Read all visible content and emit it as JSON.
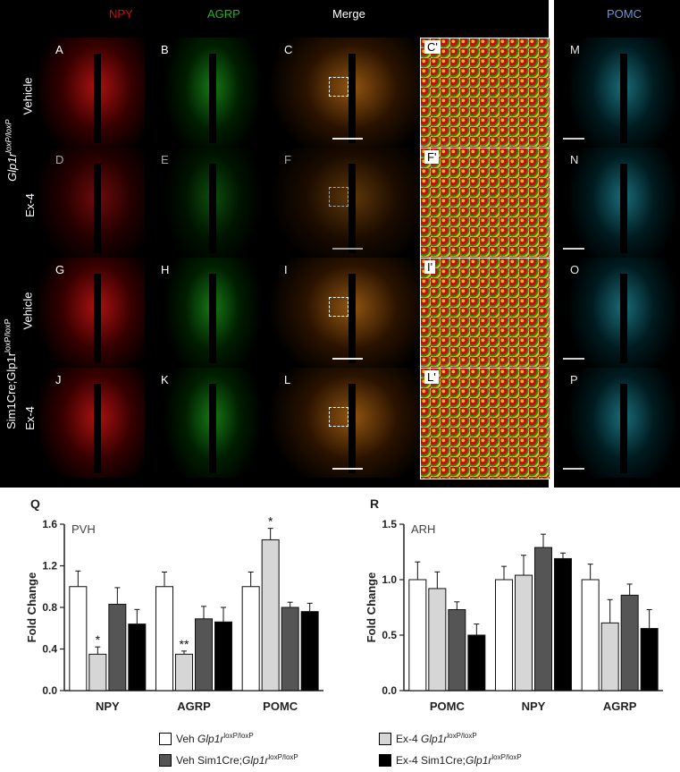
{
  "column_headers": {
    "npy": "NPY",
    "agrp": "AGRP",
    "merge": "Merge",
    "pomc": "POMC"
  },
  "row_labels": {
    "genotype_top": "Glp1r",
    "genotype_top_sup": "loxP/loxP",
    "genotype_bottom": "Sim1Cre;Glp1r",
    "genotype_bottom_sup": "loxP/loxP",
    "vehicle": "Vehicle",
    "ex4": "Ex-4"
  },
  "panel_letters": [
    "A",
    "B",
    "C",
    "C'",
    "M",
    "D",
    "E",
    "F",
    "F'",
    "N",
    "G",
    "H",
    "I",
    "I'",
    "O",
    "J",
    "K",
    "L",
    "L'",
    "P"
  ],
  "colors": {
    "npy_header": "#e00000",
    "agrp_header": "#1cb81c",
    "merge_header": "#ffffff",
    "pomc_header": "#6a96d6",
    "veh_flox": "#ffffff",
    "ex4_flox": "#d6d6d6",
    "veh_cre": "#555555",
    "ex4_cre": "#000000"
  },
  "chart_data": [
    {
      "type": "bar",
      "panel": "Q",
      "annotation": "PVH",
      "ylabel": "Fold Change",
      "categories": [
        "NPY",
        "AGRP",
        "POMC"
      ],
      "ylim": [
        0,
        1.6
      ],
      "yticks": [
        "0.0",
        "0.4",
        "0.8",
        "1.2",
        "1.6"
      ],
      "series": [
        {
          "name": "Veh Glp1r loxP/loxP",
          "values": [
            1.0,
            1.0,
            1.0
          ],
          "errors": [
            0.15,
            0.14,
            0.14
          ]
        },
        {
          "name": "Ex-4 Glp1r loxP/loxP",
          "values": [
            0.35,
            0.35,
            1.45
          ],
          "errors": [
            0.07,
            0.03,
            0.11
          ]
        },
        {
          "name": "Veh Sim1Cre;Glp1r loxP/loxP",
          "values": [
            0.83,
            0.69,
            0.8
          ],
          "errors": [
            0.16,
            0.12,
            0.05
          ]
        },
        {
          "name": "Ex-4 Sim1Cre;Glp1r loxP/loxP",
          "values": [
            0.64,
            0.66,
            0.76
          ],
          "errors": [
            0.14,
            0.14,
            0.08
          ]
        }
      ],
      "significance": [
        {
          "category": "NPY",
          "series": 1,
          "text": "*"
        },
        {
          "category": "AGRP",
          "series": 1,
          "text": "**"
        },
        {
          "category": "POMC",
          "series": 1,
          "text": "*"
        }
      ]
    },
    {
      "type": "bar",
      "panel": "R",
      "annotation": "ARH",
      "ylabel": "Fold Change",
      "categories": [
        "POMC",
        "NPY",
        "AGRP"
      ],
      "ylim": [
        0,
        1.5
      ],
      "yticks": [
        "0.0",
        "0.5",
        "1.0",
        "1.5"
      ],
      "series": [
        {
          "name": "Veh Glp1r loxP/loxP",
          "values": [
            1.0,
            1.0,
            1.0
          ],
          "errors": [
            0.16,
            0.12,
            0.14
          ]
        },
        {
          "name": "Ex-4 Glp1r loxP/loxP",
          "values": [
            0.92,
            1.04,
            0.61
          ],
          "errors": [
            0.15,
            0.18,
            0.21
          ]
        },
        {
          "name": "Veh Sim1Cre;Glp1r loxP/loxP",
          "values": [
            0.73,
            1.29,
            0.86
          ],
          "errors": [
            0.07,
            0.12,
            0.1
          ]
        },
        {
          "name": "Ex-4 Sim1Cre;Glp1r loxP/loxP",
          "values": [
            0.5,
            1.19,
            0.56
          ],
          "errors": [
            0.1,
            0.05,
            0.17
          ]
        }
      ]
    }
  ],
  "legend": [
    {
      "prefix": "Veh ",
      "gene": "Glp1r",
      "sup": "loxP/loxP",
      "color_key": "veh_flox"
    },
    {
      "prefix": "Ex-4 ",
      "gene": "Glp1r",
      "sup": "loxP/loxP",
      "color_key": "ex4_flox"
    },
    {
      "prefix": "Veh Sim1Cre;",
      "gene": "Glp1r",
      "sup": "loxP/loxP",
      "color_key": "veh_cre"
    },
    {
      "prefix": "Ex-4 Sim1Cre;",
      "gene": "Glp1r",
      "sup": "loxP/loxP",
      "color_key": "ex4_cre"
    }
  ],
  "chart_panel_letters": {
    "q": "Q",
    "r": "R"
  }
}
